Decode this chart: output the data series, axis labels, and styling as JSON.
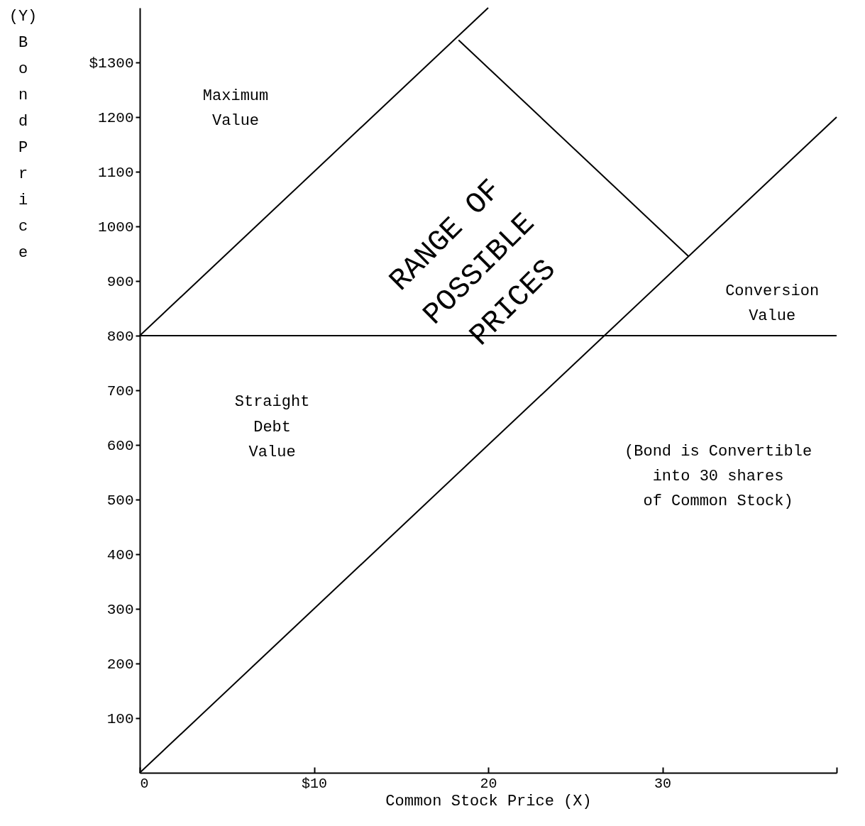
{
  "chart_data": {
    "type": "line",
    "xlabel": "Common Stock Price (X)",
    "ylabel": "(Y) Bond Price",
    "xlim": [
      0,
      40
    ],
    "ylim": [
      0,
      1400
    ],
    "xticks": [
      0,
      {
        "value": 10,
        "label": "$10"
      },
      20,
      30,
      {
        "value": 40,
        "label": null
      }
    ],
    "yticks": [
      100,
      200,
      300,
      400,
      500,
      600,
      700,
      800,
      900,
      1000,
      1100,
      1200,
      {
        "value": 1300,
        "label": "$1300"
      }
    ],
    "series": [
      {
        "color": "#000000",
        "x": [
          0,
          40
        ],
        "values": [
          0,
          1200
        ]
      },
      {
        "color": "#000000",
        "x": [
          0,
          40
        ],
        "values": [
          800,
          800
        ]
      },
      {
        "color": "#000000",
        "x": [
          0,
          20
        ],
        "values": [
          800,
          1400
        ]
      },
      {
        "color": "#000000",
        "x": [
          18.3,
          31.5
        ],
        "values": [
          1341,
          945
        ]
      }
    ],
    "annotations": [
      "Maximum\nValue",
      "Straight\nDebt\nValue",
      "Conversion\nValue",
      "(Bond is Convertible\ninto 30 shares\nof Common Stock)",
      "RANGE OF\nPOSSIBLE\nPRICES"
    ],
    "grid": false,
    "marker": "none",
    "line_style": "solid"
  }
}
